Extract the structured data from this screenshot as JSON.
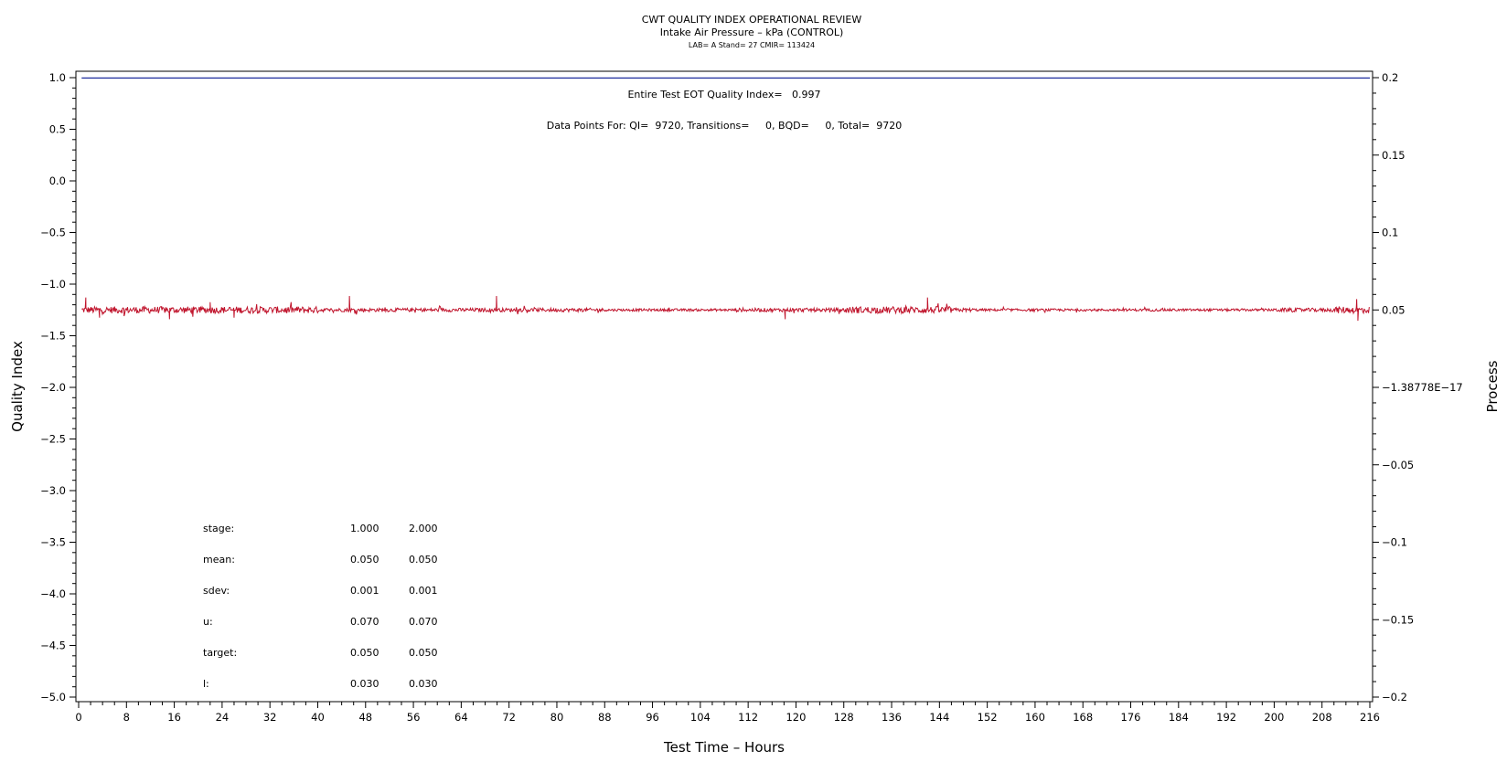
{
  "chart_data": {
    "type": "line",
    "title": "CWT QUALITY INDEX OPERATIONAL REVIEW",
    "subtitle": "Intake Air Pressure – kPa (CONTROL)",
    "subtitle2": "LAB= A Stand= 27 CMIR= 113424",
    "xlabel": "Test Time – Hours",
    "ylabel_left": "Quality Index",
    "ylabel_right": "Process",
    "xlim": [
      0,
      216
    ],
    "ylim_left": [
      -5.0,
      1.0
    ],
    "ylim_right": [
      -0.2,
      0.2
    ],
    "x_ticks": [
      "0",
      "8",
      "16",
      "24",
      "32",
      "40",
      "48",
      "56",
      "64",
      "72",
      "80",
      "88",
      "96",
      "104",
      "112",
      "120",
      "128",
      "136",
      "144",
      "152",
      "160",
      "168",
      "176",
      "184",
      "192",
      "200",
      "208",
      "216"
    ],
    "y_left_ticks": [
      "1.0",
      "0.5",
      "0.0",
      "−0.5",
      "−1.0",
      "−1.5",
      "−2.0",
      "−2.5",
      "−3.0",
      "−3.5",
      "−4.0",
      "−4.5",
      "−5.0"
    ],
    "y_right_ticks": [
      "0.2",
      "0.15",
      "0.1",
      "0.05",
      "−1.38778E−17",
      "−0.05",
      "−0.1",
      "−0.15",
      "−0.2"
    ],
    "grid": false,
    "annotations": {
      "qi_text": "Entire Test EOT Quality Index=   0.997",
      "points_text": "Data Points For: QI=  9720, Transitions=     0, BQD=     0, Total=  9720"
    },
    "series": [
      {
        "axis": "left",
        "color": "#1f2e9e",
        "x": [
          0.5,
          216
        ],
        "values": [
          0.997,
          0.997
        ]
      },
      {
        "name": "",
        "axis": "right",
        "color": "#c0142c",
        "x_range": [
          0.5,
          216
        ],
        "approx_mean": 0.05,
        "spikes": [
          {
            "x": 1.2,
            "y": 0.058
          },
          {
            "x": 3.5,
            "y": 0.045
          },
          {
            "x": 7.6,
            "y": 0.046
          },
          {
            "x": 15.2,
            "y": 0.044
          },
          {
            "x": 22.0,
            "y": 0.055
          },
          {
            "x": 26.0,
            "y": 0.045
          },
          {
            "x": 45.3,
            "y": 0.059
          },
          {
            "x": 69.9,
            "y": 0.059
          },
          {
            "x": 118.2,
            "y": 0.044
          },
          {
            "x": 142.0,
            "y": 0.058
          },
          {
            "x": 213.8,
            "y": 0.057
          },
          {
            "x": 214.0,
            "y": 0.043
          }
        ]
      }
    ],
    "stats_table": {
      "rows": [
        {
          "label": "stage:",
          "v1": "1.000",
          "v2": "2.000"
        },
        {
          "label": "mean:",
          "v1": "0.050",
          "v2": "0.050"
        },
        {
          "label": "sdev:",
          "v1": "0.001",
          "v2": "0.001"
        },
        {
          "label": "u:",
          "v1": "0.070",
          "v2": "0.070"
        },
        {
          "label": "target:",
          "v1": "0.050",
          "v2": "0.050"
        },
        {
          "label": "l:",
          "v1": "0.030",
          "v2": "0.030"
        }
      ]
    }
  }
}
